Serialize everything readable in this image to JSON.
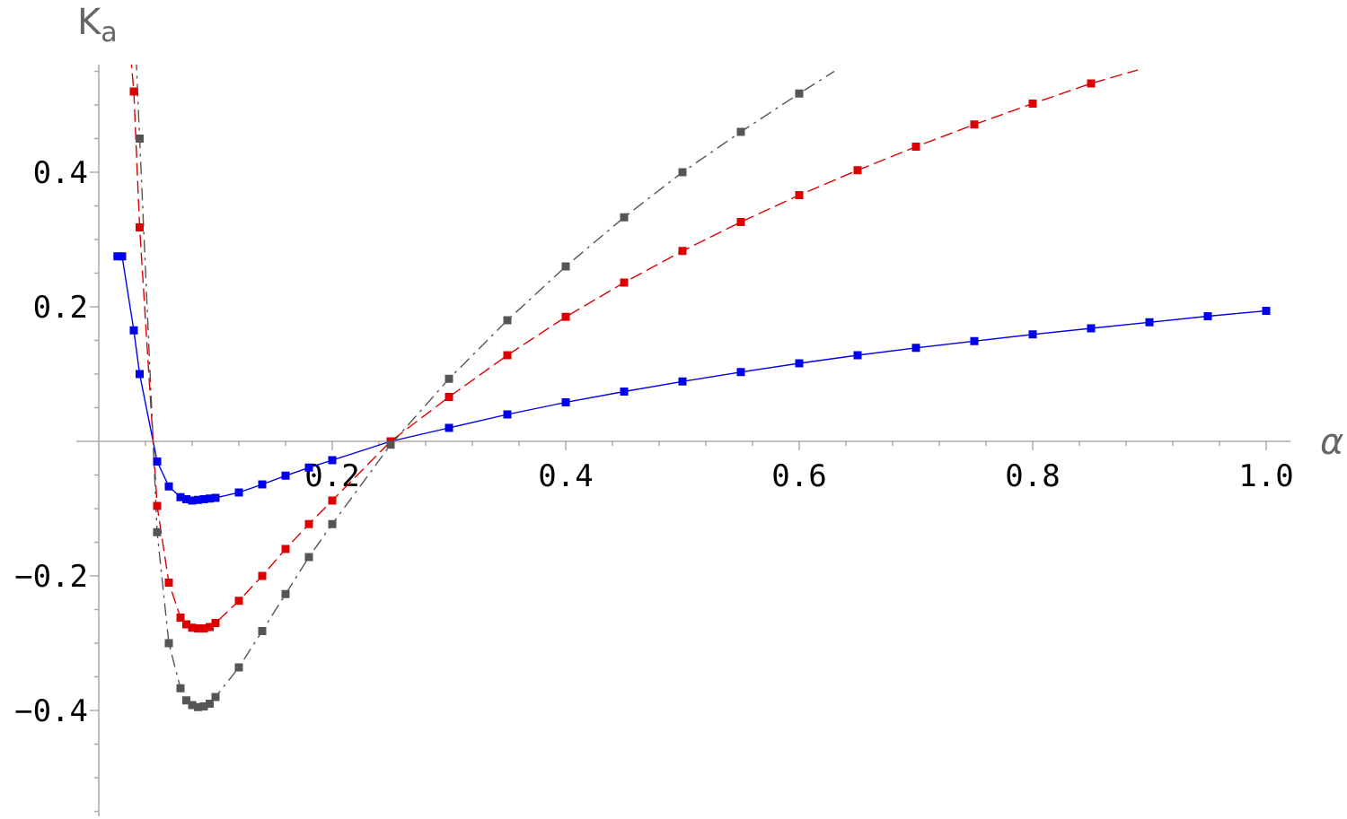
{
  "chart_data": {
    "type": "line",
    "title": "",
    "xlabel": "α",
    "ylabel_base": "K",
    "ylabel_sub": "a",
    "xlim": [
      0,
      1.0
    ],
    "ylim": [
      -0.55,
      0.55
    ],
    "x_ticks": [
      0.2,
      0.4,
      0.6,
      0.8,
      1.0
    ],
    "x_tick_labels": [
      "0.2",
      "0.4",
      "0.6",
      "0.8",
      "1.0"
    ],
    "y_ticks": [
      -0.4,
      -0.2,
      0.2,
      0.4
    ],
    "y_tick_labels": [
      "−0.4",
      "−0.2",
      "0.2",
      "0.4"
    ],
    "grid": false,
    "legend": "none",
    "series": [
      {
        "color": "#0000ee",
        "line_style": "solid",
        "x": [
          0.016,
          0.02,
          0.03,
          0.035,
          0.05,
          0.06,
          0.07,
          0.075,
          0.08,
          0.085,
          0.09,
          0.095,
          0.1,
          0.12,
          0.14,
          0.16,
          0.18,
          0.2,
          0.25,
          0.3,
          0.35,
          0.4,
          0.45,
          0.5,
          0.55,
          0.6,
          0.65,
          0.7,
          0.75,
          0.8,
          0.85,
          0.9,
          0.95,
          1.0
        ],
        "y": [
          0.275,
          0.275,
          0.165,
          0.1,
          -0.03,
          -0.067,
          -0.083,
          -0.086,
          -0.088,
          -0.087,
          -0.086,
          -0.085,
          -0.084,
          -0.076,
          -0.064,
          -0.051,
          -0.039,
          -0.028,
          0.0,
          0.02,
          0.04,
          0.058,
          0.074,
          0.089,
          0.103,
          0.116,
          0.128,
          0.139,
          0.149,
          0.159,
          0.168,
          0.177,
          0.186,
          0.194
        ]
      },
      {
        "color": "#dd0000",
        "line_style": "dashed",
        "x": [
          0.03,
          0.035,
          0.05,
          0.06,
          0.07,
          0.075,
          0.08,
          0.085,
          0.09,
          0.095,
          0.1,
          0.12,
          0.14,
          0.16,
          0.18,
          0.2,
          0.25,
          0.3,
          0.35,
          0.4,
          0.45,
          0.5,
          0.55,
          0.6,
          0.65,
          0.7,
          0.75,
          0.8,
          0.85
        ],
        "y": [
          0.52,
          0.318,
          -0.096,
          -0.21,
          -0.262,
          -0.272,
          -0.277,
          -0.278,
          -0.278,
          -0.276,
          -0.27,
          -0.237,
          -0.2,
          -0.16,
          -0.123,
          -0.088,
          0.0,
          0.066,
          0.128,
          0.185,
          0.236,
          0.283,
          0.326,
          0.366,
          0.403,
          0.438,
          0.471,
          0.502,
          0.532
        ]
      },
      {
        "color": "#555555",
        "line_style": "dash-dot",
        "x": [
          0.035,
          0.05,
          0.06,
          0.07,
          0.075,
          0.08,
          0.085,
          0.09,
          0.095,
          0.1,
          0.12,
          0.14,
          0.16,
          0.18,
          0.2,
          0.25,
          0.3,
          0.35,
          0.4,
          0.45,
          0.5,
          0.55,
          0.6
        ],
        "y": [
          0.45,
          -0.135,
          -0.3,
          -0.367,
          -0.385,
          -0.392,
          -0.395,
          -0.394,
          -0.39,
          -0.38,
          -0.336,
          -0.282,
          -0.227,
          -0.172,
          -0.123,
          -0.005,
          0.093,
          0.18,
          0.26,
          0.333,
          0.4,
          0.46,
          0.517
        ]
      }
    ]
  }
}
